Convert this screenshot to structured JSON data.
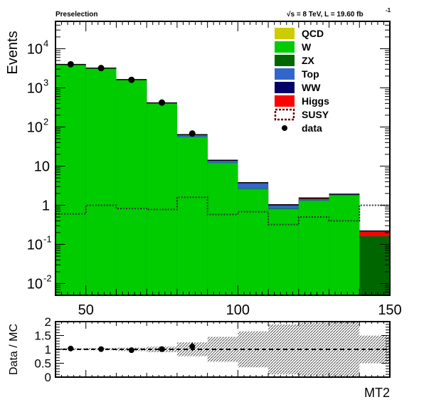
{
  "header": {
    "left": "Preselection",
    "right_prefix": "√s = 8 TeV, L = 19.60 fb",
    "right_exp": "-1"
  },
  "legend": [
    {
      "label": "QCD",
      "color": "#cccc00",
      "kind": "fill"
    },
    {
      "label": "W",
      "color": "#00cc00",
      "kind": "fill"
    },
    {
      "label": "ZX",
      "color": "#006600",
      "kind": "fill"
    },
    {
      "label": "Top",
      "color": "#3366cc",
      "kind": "fill"
    },
    {
      "label": "WW",
      "color": "#000066",
      "kind": "fill"
    },
    {
      "label": "Higgs",
      "color": "#ff0000",
      "kind": "fill"
    },
    {
      "label": "SUSY",
      "color": "#660000",
      "kind": "dashed"
    },
    {
      "label": "data",
      "color": "#000000",
      "kind": "marker"
    }
  ],
  "chart_data": [
    {
      "type": "bar",
      "subtype": "stacked-histogram",
      "ylabel": "Events",
      "yscale": "log",
      "xlim": [
        40,
        150
      ],
      "ylim": [
        0.005,
        50000
      ],
      "bin_edges": [
        40,
        50,
        60,
        70,
        80,
        90,
        100,
        110,
        120,
        130,
        140,
        150
      ],
      "y_ticks": [
        {
          "label": "10",
          "exp": "-2",
          "value": 0.01
        },
        {
          "label": "10",
          "exp": "-1",
          "value": 0.1
        },
        {
          "label": "1",
          "exp": "",
          "value": 1
        },
        {
          "label": "10",
          "exp": "",
          "value": 10
        },
        {
          "label": "10",
          "exp": "2",
          "value": 100
        },
        {
          "label": "10",
          "exp": "3",
          "value": 1000
        },
        {
          "label": "10",
          "exp": "4",
          "value": 10000
        }
      ],
      "x_ticks": [
        {
          "label": "50",
          "value": 50
        },
        {
          "label": "100",
          "value": 100
        },
        {
          "label": "150",
          "value": 150
        }
      ],
      "series": [
        {
          "name": "QCD",
          "color": "#cccc00",
          "values": [
            0,
            0,
            0,
            0,
            0,
            0,
            0,
            0,
            0,
            0,
            0
          ]
        },
        {
          "name": "W",
          "color": "#00cc00",
          "values": [
            3900,
            3150,
            1600,
            400,
            55,
            12,
            2.6,
            0.8,
            1.3,
            1.8,
            0
          ]
        },
        {
          "name": "ZX",
          "color": "#006600",
          "values": [
            10,
            8,
            5,
            2,
            0.5,
            0.15,
            0.05,
            0.02,
            0.02,
            0.02,
            0.16
          ]
        },
        {
          "name": "Top",
          "color": "#3366cc",
          "values": [
            25,
            20,
            15,
            8,
            7,
            1.6,
            1.0,
            0.17,
            0.1,
            0.06,
            0
          ]
        },
        {
          "name": "WW",
          "color": "#000066",
          "values": [
            8,
            6,
            4,
            2,
            1,
            0.3,
            0.1,
            0.03,
            0.03,
            0.02,
            0
          ]
        },
        {
          "name": "Higgs",
          "color": "#ff0000",
          "values": [
            1,
            1,
            1,
            0.5,
            0.2,
            0.05,
            0.02,
            0.01,
            0.08,
            0.02,
            0.06
          ]
        }
      ],
      "susy": {
        "name": "SUSY",
        "values": [
          0.6,
          1.0,
          0.82,
          0.78,
          1.6,
          0.58,
          0.68,
          0.32,
          0.5,
          0.4,
          1.0
        ]
      },
      "data": {
        "name": "data",
        "x": [
          45,
          55,
          65,
          75,
          85
        ],
        "y": [
          4000,
          3200,
          1600,
          420,
          68
        ]
      }
    },
    {
      "type": "scatter",
      "subtype": "ratio",
      "ylabel": "Data / MC",
      "xlabel": "MT2",
      "xlim": [
        40,
        150
      ],
      "ylim": [
        0,
        2
      ],
      "y_ticks": [
        {
          "label": "0",
          "value": 0
        },
        {
          "label": "0.5",
          "value": 0.5
        },
        {
          "label": "1",
          "value": 1
        },
        {
          "label": "1.5",
          "value": 1.5
        },
        {
          "label": "2",
          "value": 2
        }
      ],
      "bin_edges": [
        40,
        50,
        60,
        70,
        80,
        90,
        100,
        110,
        120,
        130,
        140,
        150
      ],
      "uncertainty": [
        {
          "lo": 0.98,
          "hi": 1.04
        },
        {
          "lo": 0.97,
          "hi": 1.05
        },
        {
          "lo": 0.94,
          "hi": 1.06
        },
        {
          "lo": 0.9,
          "hi": 1.1
        },
        {
          "lo": 0.75,
          "hi": 1.25
        },
        {
          "lo": 0.55,
          "hi": 1.45
        },
        {
          "lo": 0.35,
          "hi": 1.65
        },
        {
          "lo": 0.1,
          "hi": 1.9
        },
        {
          "lo": 0.05,
          "hi": 1.95
        },
        {
          "lo": 0.0,
          "hi": 2.0
        },
        {
          "lo": 0.5,
          "hi": 1.5
        }
      ],
      "x": [
        45,
        55,
        65,
        75,
        85
      ],
      "y": [
        1.03,
        1.01,
        0.97,
        1.01,
        1.1
      ],
      "yerr": [
        0.03,
        0.03,
        0.04,
        0.06,
        0.15
      ]
    }
  ]
}
